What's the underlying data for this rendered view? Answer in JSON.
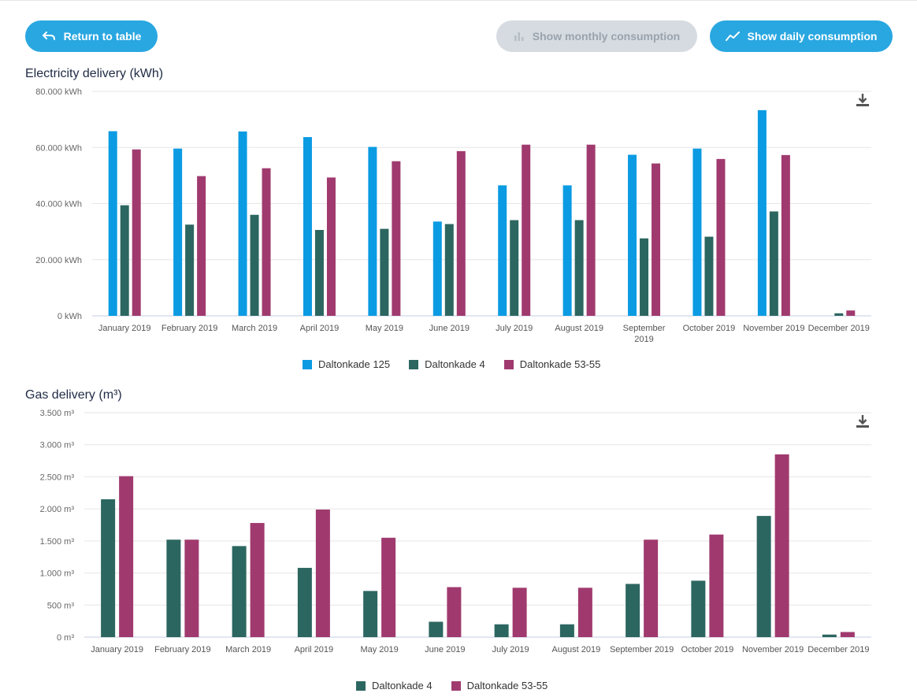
{
  "toolbar": {
    "return_label": "Return to table",
    "monthly_label": "Show monthly consumption",
    "daily_label": "Show daily consumption"
  },
  "icons": {
    "return": "undo-arrow-icon",
    "monthly": "bar-chart-icon",
    "daily": "line-chart-icon",
    "download": "download-icon"
  },
  "colors": {
    "primary": "#29a7e1",
    "disabled": "#d6dbe1",
    "series_blue": "#0a9be3",
    "series_green": "#2c6660",
    "series_magenta": "#a03a6e"
  },
  "chart_data": [
    {
      "type": "bar",
      "title": "Electricity delivery (kWh)",
      "unit": "kWh",
      "ylim": [
        0,
        80000
      ],
      "yticks": [
        {
          "value": 0,
          "label": "0 kWh"
        },
        {
          "value": 20000,
          "label": "20.000 kWh"
        },
        {
          "value": 40000,
          "label": "40.000 kWh"
        },
        {
          "value": 60000,
          "label": "60.000 kWh"
        },
        {
          "value": 80000,
          "label": "80.000 kWh"
        }
      ],
      "categories": [
        "January 2019",
        "February 2019",
        "March 2019",
        "April 2019",
        "May 2019",
        "June 2019",
        "July 2019",
        "August 2019",
        "September 2019",
        "October 2019",
        "November 2019",
        "December 2019"
      ],
      "series": [
        {
          "name": "Daltonkade 125",
          "color": "#0a9be3",
          "values": [
            65800,
            59600,
            65700,
            63700,
            60200,
            33600,
            46500,
            46500,
            57400,
            59600,
            73300,
            0
          ]
        },
        {
          "name": "Daltonkade 4",
          "color": "#2c6660",
          "values": [
            39400,
            32500,
            36000,
            30600,
            31000,
            32700,
            34100,
            34100,
            27600,
            28200,
            37200,
            900
          ]
        },
        {
          "name": "Daltonkade 53-55",
          "color": "#a03a6e",
          "values": [
            59300,
            49800,
            52600,
            49300,
            55100,
            58700,
            61000,
            61000,
            54300,
            55900,
            57300,
            1900
          ]
        }
      ],
      "grid": true,
      "legend": "bottom-center"
    },
    {
      "type": "bar",
      "title": "Gas delivery (m³)",
      "unit": "m³",
      "ylim": [
        0,
        3500
      ],
      "yticks": [
        {
          "value": 0,
          "label": "0 m³"
        },
        {
          "value": 500,
          "label": "500 m³"
        },
        {
          "value": 1000,
          "label": "1.000 m³"
        },
        {
          "value": 1500,
          "label": "1.500 m³"
        },
        {
          "value": 2000,
          "label": "2.000 m³"
        },
        {
          "value": 2500,
          "label": "2.500 m³"
        },
        {
          "value": 3000,
          "label": "3.000 m³"
        },
        {
          "value": 3500,
          "label": "3.500 m³"
        }
      ],
      "categories": [
        "January 2019",
        "February 2019",
        "March 2019",
        "April 2019",
        "May 2019",
        "June 2019",
        "July 2019",
        "August 2019",
        "September 2019",
        "October 2019",
        "November 2019",
        "December 2019"
      ],
      "series": [
        {
          "name": "Daltonkade 4",
          "color": "#2c6660",
          "values": [
            2150,
            1520,
            1420,
            1080,
            720,
            240,
            200,
            200,
            830,
            880,
            1890,
            40
          ]
        },
        {
          "name": "Daltonkade 53-55",
          "color": "#a03a6e",
          "values": [
            2510,
            1520,
            1780,
            1990,
            1550,
            780,
            770,
            770,
            1520,
            1600,
            2850,
            80
          ]
        }
      ],
      "grid": true,
      "legend": "bottom-center"
    }
  ]
}
